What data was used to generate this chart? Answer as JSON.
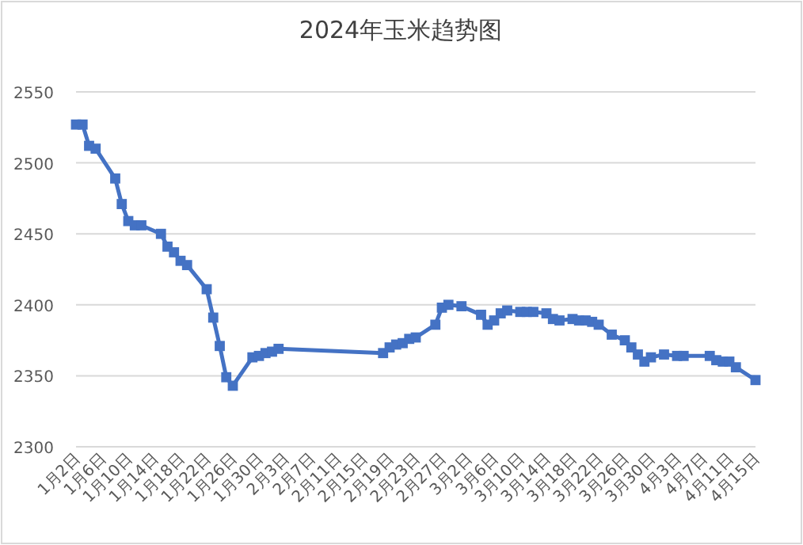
{
  "chart_data": {
    "type": "line",
    "title": "2024年玉米趋势图",
    "x": [
      "2024-01-02",
      "2024-01-03",
      "2024-01-04",
      "2024-01-05",
      "2024-01-08",
      "2024-01-09",
      "2024-01-10",
      "2024-01-11",
      "2024-01-12",
      "2024-01-15",
      "2024-01-16",
      "2024-01-17",
      "2024-01-18",
      "2024-01-19",
      "2024-01-22",
      "2024-01-23",
      "2024-01-24",
      "2024-01-25",
      "2024-01-26",
      "2024-01-29",
      "2024-01-30",
      "2024-01-31",
      "2024-02-01",
      "2024-02-02",
      "2024-02-18",
      "2024-02-19",
      "2024-02-20",
      "2024-02-21",
      "2024-02-22",
      "2024-02-23",
      "2024-02-26",
      "2024-02-27",
      "2024-02-28",
      "2024-03-01",
      "2024-03-04",
      "2024-03-05",
      "2024-03-06",
      "2024-03-07",
      "2024-03-08",
      "2024-03-10",
      "2024-03-11",
      "2024-03-12",
      "2024-03-14",
      "2024-03-15",
      "2024-03-16",
      "2024-03-18",
      "2024-03-19",
      "2024-03-20",
      "2024-03-21",
      "2024-03-22",
      "2024-03-24",
      "2024-03-26",
      "2024-03-27",
      "2024-03-28",
      "2024-03-29",
      "2024-03-30",
      "2024-04-01",
      "2024-04-03",
      "2024-04-04",
      "2024-04-08",
      "2024-04-09",
      "2024-04-10",
      "2024-04-11",
      "2024-04-12",
      "2024-04-15"
    ],
    "series": [
      {
        "color": "#4472c4",
        "values": [
          2527,
          2527,
          2512,
          2510,
          2489,
          2471,
          2459,
          2456,
          2456,
          2450,
          2441,
          2437,
          2431,
          2428,
          2411,
          2391,
          2371,
          2349,
          2343,
          2363,
          2364,
          2366,
          2367,
          2369,
          2366,
          2370,
          2372,
          2373,
          2376,
          2377,
          2386,
          2398,
          2400,
          2399,
          2393,
          2386,
          2389,
          2394,
          2396,
          2395,
          2395,
          2395,
          2394,
          2390,
          2389,
          2390,
          2389,
          2389,
          2388,
          2386,
          2379,
          2375,
          2370,
          2365,
          2360,
          2363,
          2365,
          2364,
          2364,
          2364,
          2361,
          2360,
          2360,
          2356,
          2347
        ]
      }
    ],
    "xlim": [
      "2024-01-02",
      "2024-04-15"
    ],
    "xticks": [
      {
        "value": "2024-01-02",
        "label": "1月2日"
      },
      {
        "value": "2024-01-06",
        "label": "1月6日"
      },
      {
        "value": "2024-01-10",
        "label": "1月10日"
      },
      {
        "value": "2024-01-14",
        "label": "1月14日"
      },
      {
        "value": "2024-01-18",
        "label": "1月18日"
      },
      {
        "value": "2024-01-22",
        "label": "1月22日"
      },
      {
        "value": "2024-01-26",
        "label": "1月26日"
      },
      {
        "value": "2024-01-30",
        "label": "1月30日"
      },
      {
        "value": "2024-02-03",
        "label": "2月3日"
      },
      {
        "value": "2024-02-07",
        "label": "2月7日"
      },
      {
        "value": "2024-02-11",
        "label": "2月11日"
      },
      {
        "value": "2024-02-15",
        "label": "2月15日"
      },
      {
        "value": "2024-02-19",
        "label": "2月19日"
      },
      {
        "value": "2024-02-23",
        "label": "2月23日"
      },
      {
        "value": "2024-02-27",
        "label": "2月27日"
      },
      {
        "value": "2024-03-02",
        "label": "3月2日"
      },
      {
        "value": "2024-03-06",
        "label": "3月6日"
      },
      {
        "value": "2024-03-10",
        "label": "3月10日"
      },
      {
        "value": "2024-03-14",
        "label": "3月14日"
      },
      {
        "value": "2024-03-18",
        "label": "3月18日"
      },
      {
        "value": "2024-03-22",
        "label": "3月22日"
      },
      {
        "value": "2024-03-26",
        "label": "3月26日"
      },
      {
        "value": "2024-03-30",
        "label": "3月30日"
      },
      {
        "value": "2024-04-03",
        "label": "4月3日"
      },
      {
        "value": "2024-04-07",
        "label": "4月7日"
      },
      {
        "value": "2024-04-11",
        "label": "4月11日"
      },
      {
        "value": "2024-04-15",
        "label": "4月15日"
      }
    ],
    "ylim": [
      2300,
      2550
    ],
    "yticks": [
      2300,
      2350,
      2400,
      2450,
      2500,
      2550
    ],
    "grid": "y",
    "marker": "square",
    "line_style": "solid"
  }
}
